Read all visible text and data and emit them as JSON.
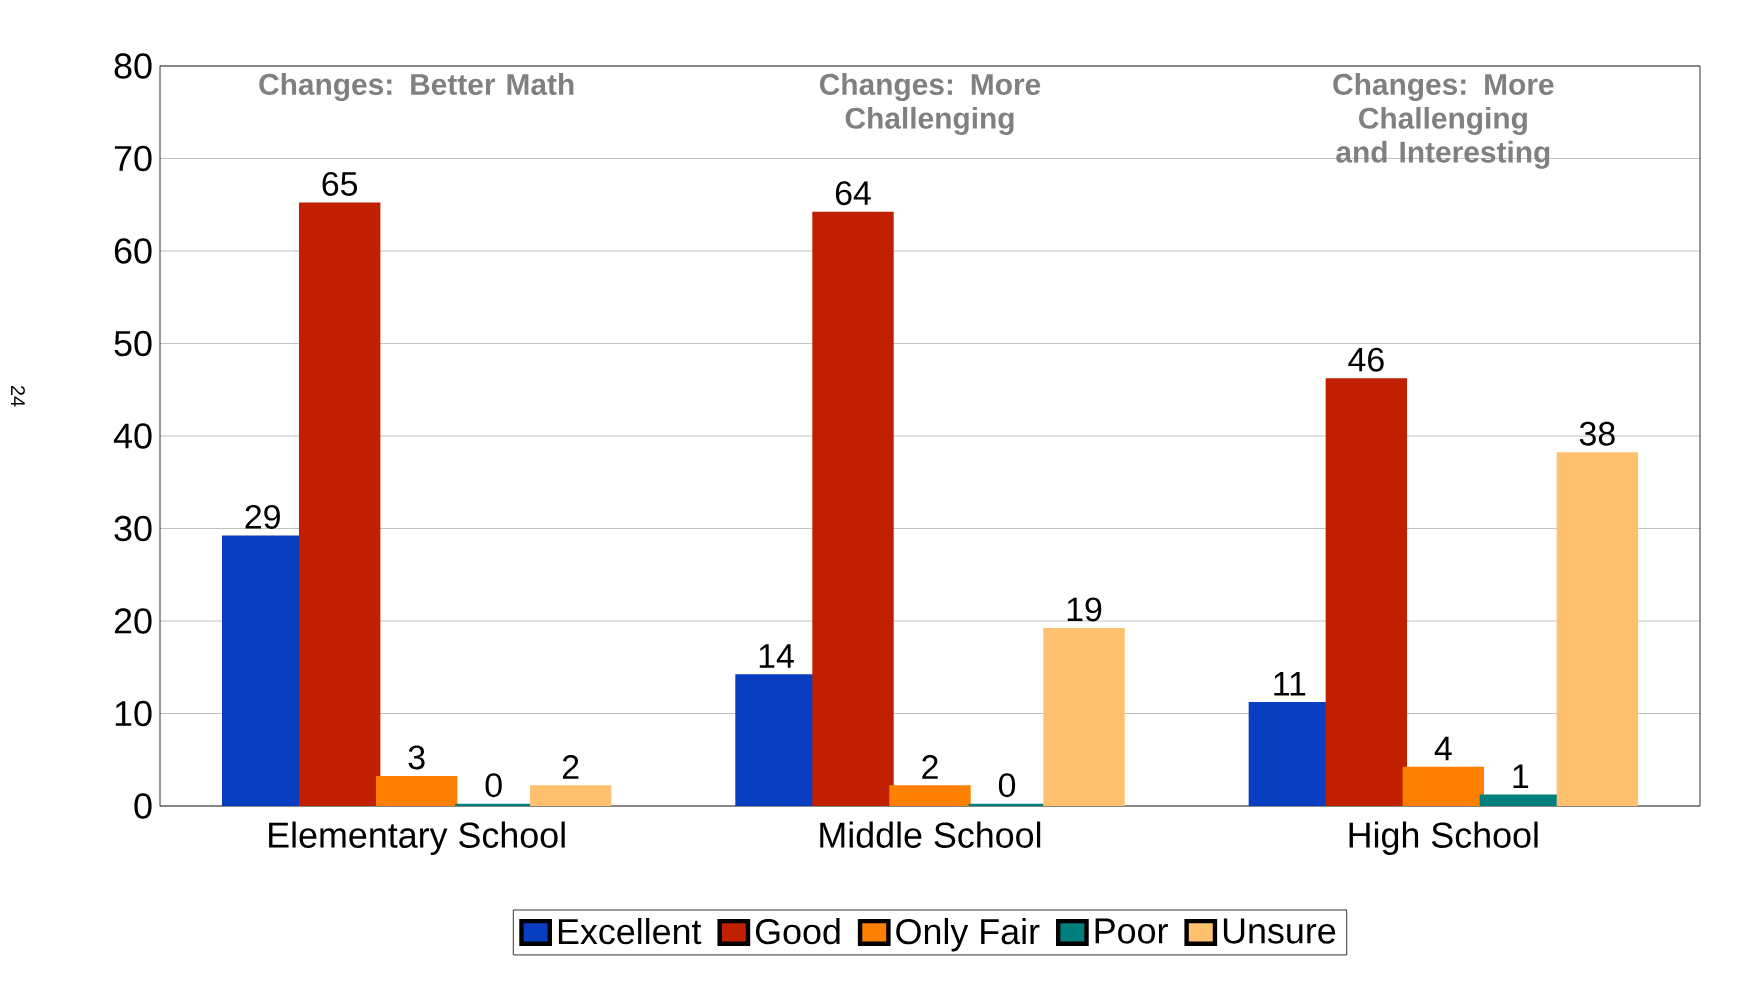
{
  "chart_data": {
    "type": "bar",
    "categories": [
      "Elementary School",
      "Middle School",
      "High School"
    ],
    "series": [
      {
        "name": "Excellent",
        "color": "#0a3ec0",
        "values": [
          29,
          14,
          11
        ]
      },
      {
        "name": "Good",
        "color": "#c02000",
        "values": [
          65,
          64,
          46
        ]
      },
      {
        "name": "Only Fair",
        "color": "#ff8000",
        "values": [
          3,
          2,
          4
        ]
      },
      {
        "name": "Poor",
        "color": "#007f7f",
        "values": [
          0,
          0,
          1
        ]
      },
      {
        "name": "Unsure",
        "color": "#ffc16f",
        "values": [
          2,
          19,
          38
        ]
      }
    ],
    "ylim": [
      0,
      80
    ],
    "yticks": [
      0,
      10,
      20,
      30,
      40,
      50,
      60,
      70,
      80
    ],
    "grid": "y",
    "legend": "bottom",
    "data_labels": true,
    "annotations": [
      "Changes: Better Math",
      "Changes: More Challenging",
      "Changes: More Challenging and Interesting",
      "24"
    ]
  }
}
